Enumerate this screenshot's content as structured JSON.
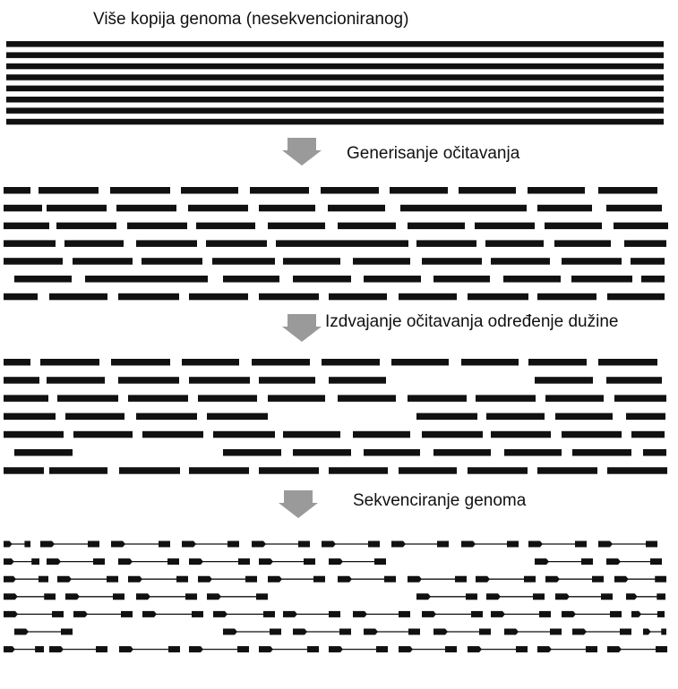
{
  "labels": {
    "title": "Više kopija genoma (nesekvencioniranog)",
    "step1": "Generisanje očitavanja",
    "step2": "Izdvajanje očitavanja određenje dužine",
    "step3": "Sekvenciranje genoma"
  },
  "colors": {
    "ink": "#111111",
    "arrow": "#9a9a9a"
  },
  "icons": [
    "down-arrow-icon",
    "down-arrow-icon",
    "down-arrow-icon"
  ]
}
